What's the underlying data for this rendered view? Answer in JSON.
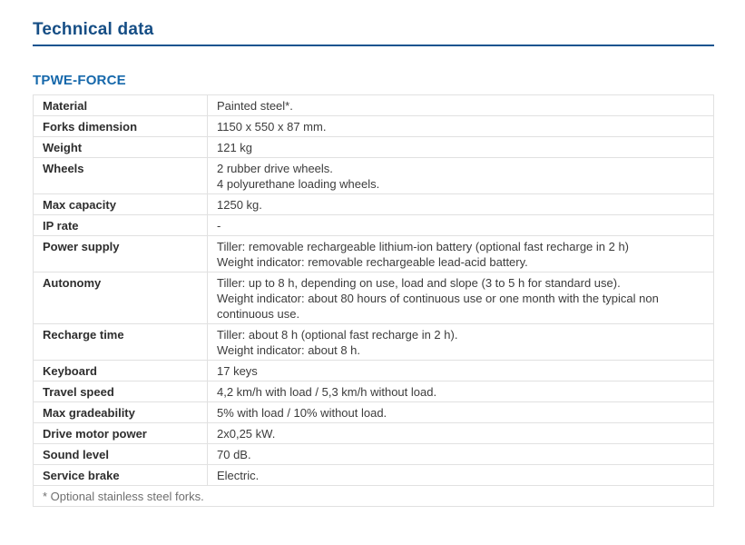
{
  "page": {
    "title": "Technical data"
  },
  "section": {
    "title": "TPWE-FORCE"
  },
  "table": {
    "rows": [
      {
        "label": "Material",
        "lines": [
          "Painted steel*."
        ]
      },
      {
        "label": "Forks dimension",
        "lines": [
          "1150 x 550 x 87 mm."
        ]
      },
      {
        "label": "Weight",
        "lines": [
          "121 kg"
        ]
      },
      {
        "label": "Wheels",
        "lines": [
          "2 rubber drive wheels.",
          "4 polyurethane loading wheels."
        ]
      },
      {
        "label": "Max capacity",
        "lines": [
          "1250 kg."
        ]
      },
      {
        "label": "IP rate",
        "lines": [
          "-"
        ]
      },
      {
        "label": "Power supply",
        "lines": [
          "Tiller: removable rechargeable lithium-ion battery (optional fast recharge in 2 h)",
          "Weight indicator: removable rechargeable lead-acid battery."
        ]
      },
      {
        "label": "Autonomy",
        "lines": [
          "Tiller: up to 8 h, depending on use, load and slope (3 to 5 h for standard use).",
          "Weight indicator: about 80 hours of continuous use or one month with the typical non continuous use."
        ]
      },
      {
        "label": "Recharge time",
        "lines": [
          "Tiller: about 8 h (optional fast recharge in 2 h).",
          "Weight indicator: about 8 h."
        ]
      },
      {
        "label": "Keyboard",
        "lines": [
          "17 keys"
        ]
      },
      {
        "label": "Travel speed",
        "lines": [
          "4,2 km/h with load / 5,3 km/h without load."
        ]
      },
      {
        "label": "Max gradeability",
        "lines": [
          "5% with load / 10% without load."
        ]
      },
      {
        "label": "Drive motor power",
        "lines": [
          "2x0,25 kW."
        ]
      },
      {
        "label": "Sound level",
        "lines": [
          "70 dB."
        ]
      },
      {
        "label": "Service brake",
        "lines": [
          "Electric."
        ]
      }
    ],
    "footnote": "* Optional stainless steel forks."
  },
  "colors": {
    "page_title": "#164e85",
    "title_rule": "#16548f",
    "section_title": "#1668ab",
    "table_border": "#e1e1e1",
    "label_text": "#2e2e2e",
    "value_text": "#3c3c3c",
    "footnote_text": "#6f6f6f"
  }
}
